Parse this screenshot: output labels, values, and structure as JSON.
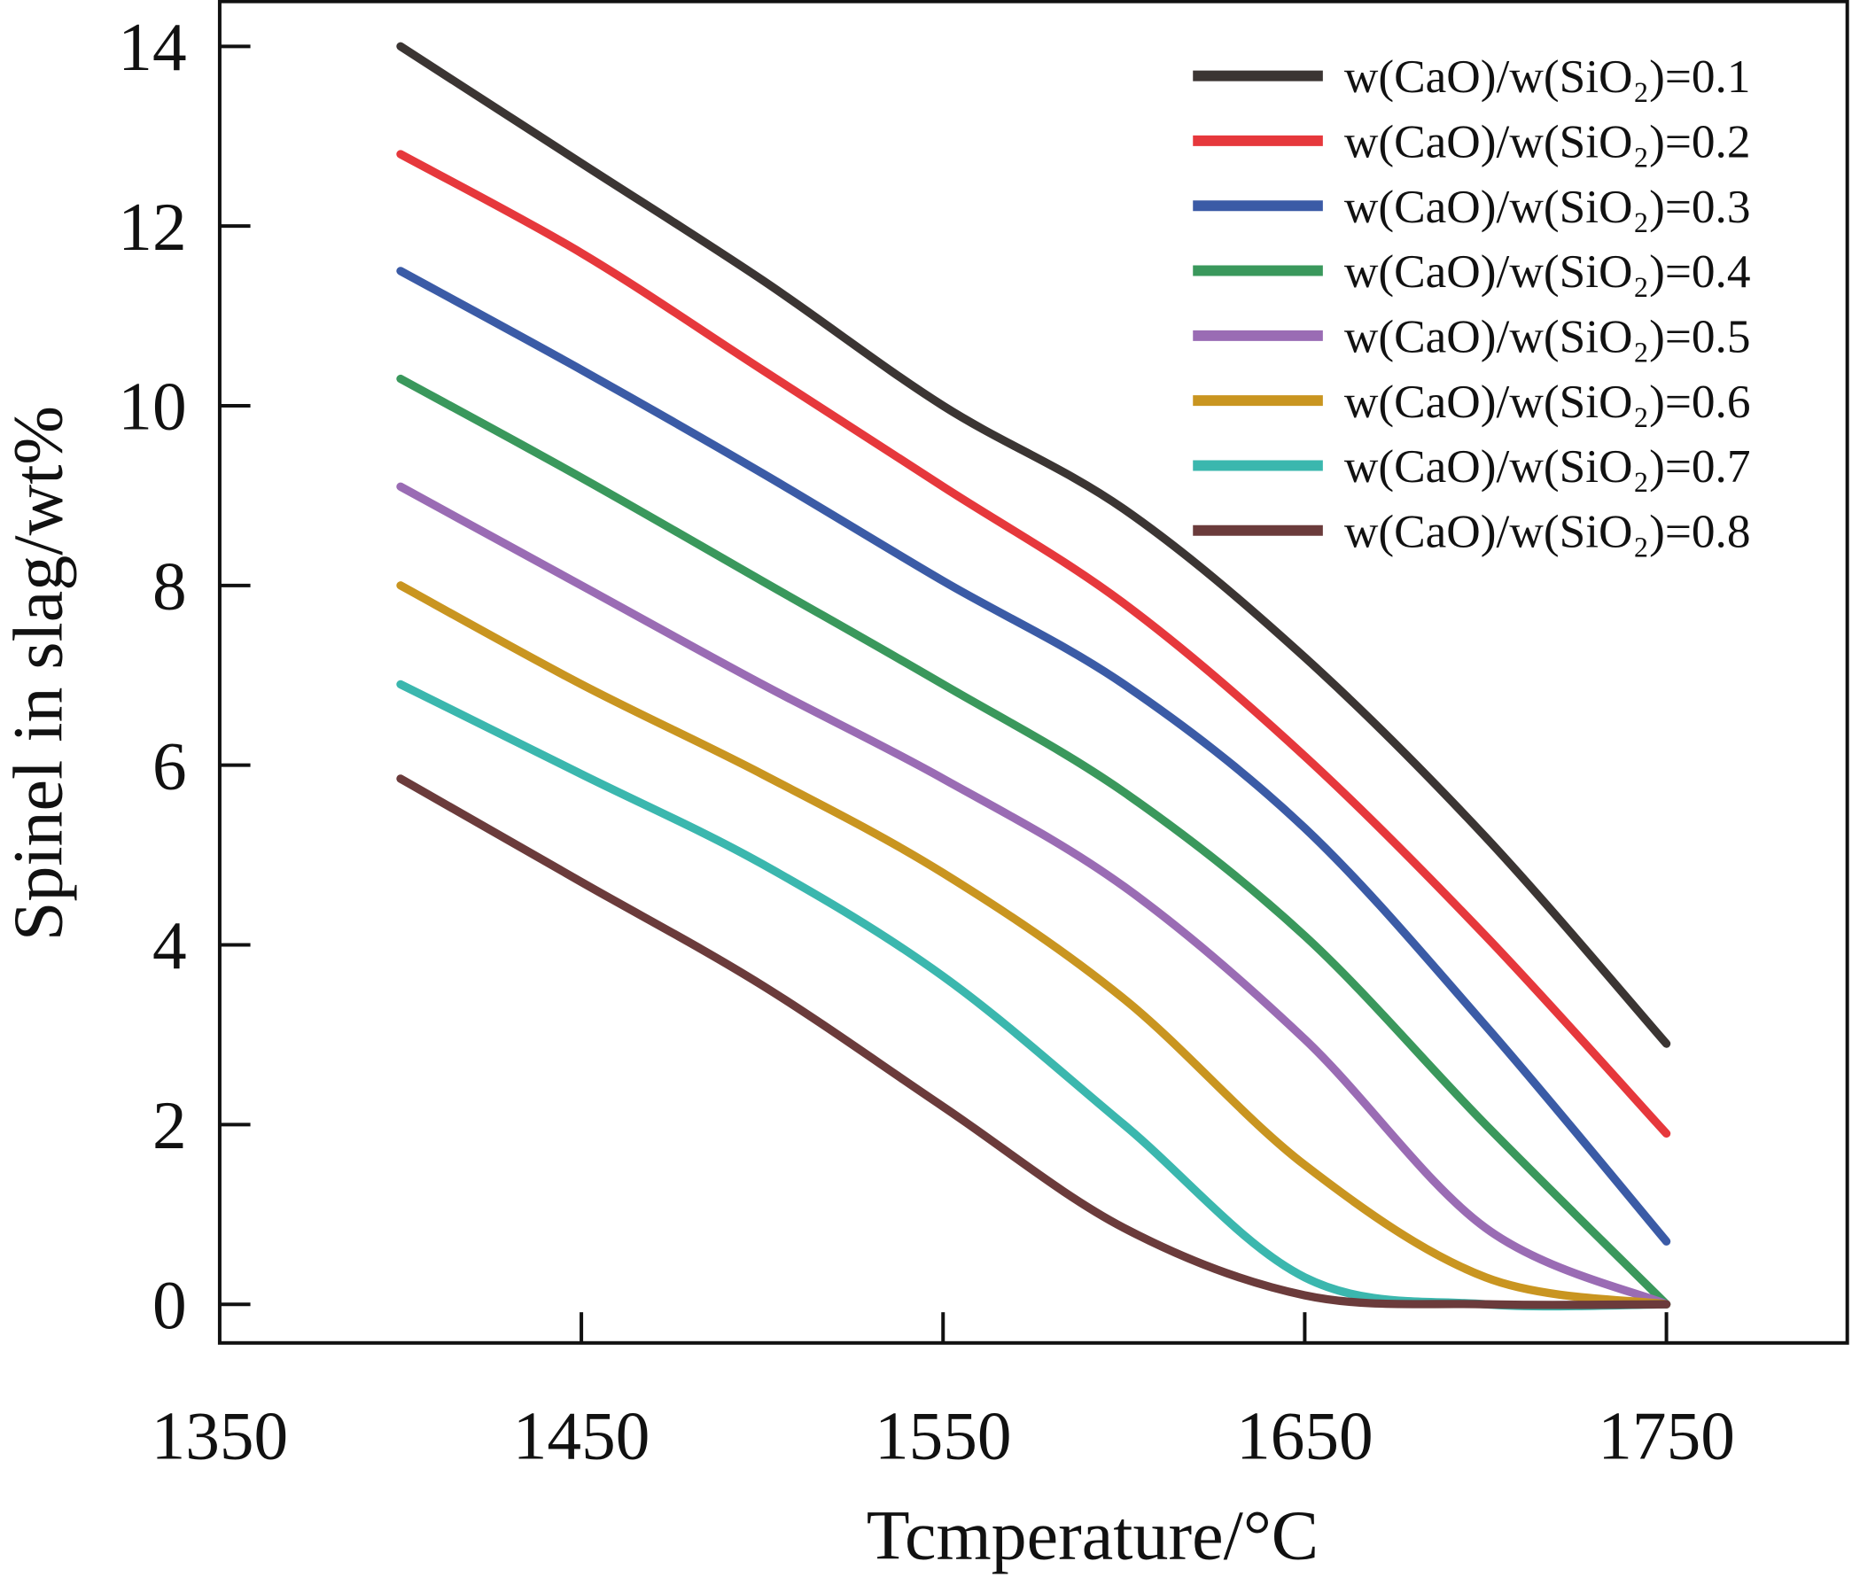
{
  "chart_data": {
    "type": "line",
    "title": "",
    "xlabel": "Tcmperature/°C",
    "ylabel": "Spinel in slag/wt%",
    "xlim": [
      1350,
      1800
    ],
    "ylim": [
      -0.43,
      14.5
    ],
    "xticks": [
      1350,
      1450,
      1550,
      1650,
      1750
    ],
    "yticks": [
      0,
      2,
      4,
      6,
      8,
      10,
      12,
      14
    ],
    "grid": false,
    "legend_position": "top-right",
    "x": [
      1400,
      1450,
      1500,
      1550,
      1600,
      1650,
      1700,
      1750
    ],
    "series": [
      {
        "name": "w(CaO)/w(SiO₂)=0.1",
        "color": "#3b3533",
        "values": [
          14.0,
          12.7,
          11.4,
          10.0,
          8.85,
          7.2,
          5.2,
          2.9
        ]
      },
      {
        "name": "w(CaO)/w(SiO₂)=0.2",
        "color": "#e6383c",
        "values": [
          12.8,
          11.7,
          10.4,
          9.1,
          7.8,
          6.1,
          4.1,
          1.9
        ]
      },
      {
        "name": "w(CaO)/w(SiO₂)=0.3",
        "color": "#3b5ba6",
        "values": [
          11.5,
          10.4,
          9.25,
          8.05,
          6.9,
          5.3,
          3.1,
          0.7
        ]
      },
      {
        "name": "w(CaO)/w(SiO₂)=0.4",
        "color": "#3a985c",
        "values": [
          10.3,
          9.2,
          8.05,
          6.9,
          5.7,
          4.1,
          2.0,
          0.0
        ]
      },
      {
        "name": "w(CaO)/w(SiO₂)=0.5",
        "color": "#9a6cb4",
        "values": [
          9.1,
          8.0,
          6.9,
          5.85,
          4.65,
          2.95,
          0.85,
          0.0
        ]
      },
      {
        "name": "w(CaO)/w(SiO₂)=0.6",
        "color": "#c99520",
        "values": [
          8.0,
          6.9,
          5.9,
          4.8,
          3.4,
          1.55,
          0.3,
          0.0
        ]
      },
      {
        "name": "w(CaO)/w(SiO₂)=0.7",
        "color": "#3bb7ae",
        "values": [
          6.9,
          5.9,
          4.9,
          3.65,
          2.0,
          0.3,
          0.0,
          0.0
        ]
      },
      {
        "name": "w(CaO)/w(SiO₂)=0.8",
        "color": "#6b3b3b",
        "values": [
          5.85,
          4.7,
          3.55,
          2.2,
          0.85,
          0.1,
          0.0,
          0.0
        ]
      }
    ]
  }
}
